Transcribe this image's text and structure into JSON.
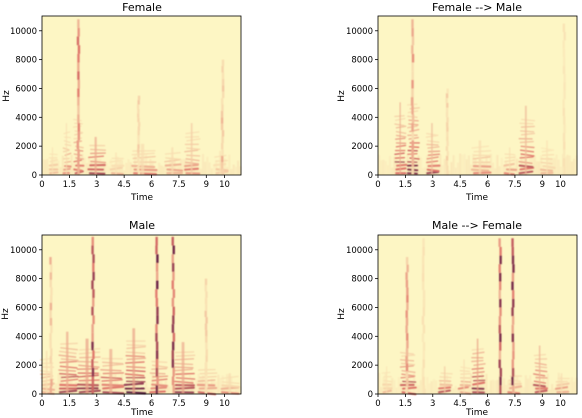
{
  "colors": {
    "background": "#fdf6c4",
    "light": "#f8ddb0",
    "mid": "#e0756a",
    "dark": "#4a0c3e",
    "axis": "#000000"
  },
  "chart_data": [
    {
      "type": "heatmap",
      "title": "Female",
      "xlabel": "Time",
      "ylabel": "Hz",
      "xlim": [
        0,
        10.9
      ],
      "ylim": [
        0,
        11025
      ],
      "xticks": [
        "0",
        "1.5",
        "3",
        "4.5",
        "6",
        "7.5",
        "9",
        "10"
      ],
      "yticks": [
        "0",
        "2000",
        "4000",
        "6000",
        "8000",
        "10000"
      ],
      "colormap": "magma_r",
      "segments": [
        {
          "t0": 0.4,
          "t1": 0.8,
          "f": 1600,
          "i": 0.5
        },
        {
          "t0": 1.2,
          "t1": 1.5,
          "f": 3000,
          "i": 0.6
        },
        {
          "t0": 1.8,
          "t1": 2.2,
          "f": 4000,
          "i": 0.7
        },
        {
          "t0": 2.6,
          "t1": 3.4,
          "f": 2200,
          "i": 0.9
        },
        {
          "t0": 3.8,
          "t1": 4.4,
          "f": 1300,
          "i": 0.5
        },
        {
          "t0": 5.0,
          "t1": 6.2,
          "f": 1800,
          "i": 0.6
        },
        {
          "t0": 6.8,
          "t1": 7.6,
          "f": 1600,
          "i": 0.6
        },
        {
          "t0": 7.9,
          "t1": 8.6,
          "f": 3000,
          "i": 0.7
        },
        {
          "t0": 9.5,
          "t1": 10.1,
          "f": 1400,
          "i": 0.5
        }
      ],
      "spikes": [
        {
          "t": 2.0,
          "f": 10800,
          "i": 0.7
        },
        {
          "t": 5.3,
          "f": 5500,
          "i": 0.4
        },
        {
          "t": 9.9,
          "f": 8000,
          "i": 0.5
        }
      ]
    },
    {
      "type": "heatmap",
      "title": "Female --> Male",
      "xlabel": "Time",
      "ylabel": "Hz",
      "xlim": [
        0,
        10.9
      ],
      "ylim": [
        0,
        11025
      ],
      "xticks": [
        "0",
        "1.5",
        "3",
        "4.5",
        "6",
        "7.5",
        "9",
        "10"
      ],
      "yticks": [
        "0",
        "2000",
        "4000",
        "6000",
        "8000",
        "10000"
      ],
      "colormap": "magma_r",
      "segments": [
        {
          "t0": 1.0,
          "t1": 1.5,
          "f": 4200,
          "i": 0.9
        },
        {
          "t0": 1.7,
          "t1": 2.2,
          "f": 5000,
          "i": 0.9
        },
        {
          "t0": 2.7,
          "t1": 3.3,
          "f": 3000,
          "i": 0.8
        },
        {
          "t0": 5.2,
          "t1": 6.1,
          "f": 2000,
          "i": 0.6
        },
        {
          "t0": 7.0,
          "t1": 7.5,
          "f": 1600,
          "i": 0.6
        },
        {
          "t0": 7.8,
          "t1": 8.5,
          "f": 4000,
          "i": 0.8
        },
        {
          "t0": 9.0,
          "t1": 9.6,
          "f": 2000,
          "i": 0.5
        }
      ],
      "spikes": [
        {
          "t": 1.9,
          "f": 10800,
          "i": 0.6
        },
        {
          "t": 3.8,
          "f": 6000,
          "i": 0.4
        },
        {
          "t": 10.2,
          "f": 10500,
          "i": 0.3
        }
      ]
    },
    {
      "type": "heatmap",
      "title": "Male",
      "xlabel": "Time",
      "ylabel": "Hz",
      "xlim": [
        0,
        10.9
      ],
      "ylim": [
        0,
        11025
      ],
      "xticks": [
        "0",
        "1.5",
        "3",
        "4.5",
        "6",
        "7.5",
        "9",
        "10"
      ],
      "yticks": [
        "0",
        "2000",
        "4000",
        "6000",
        "8000",
        "10000"
      ],
      "colormap": "magma_r",
      "segments": [
        {
          "t0": 0.0,
          "t1": 0.6,
          "f": 2500,
          "i": 0.6
        },
        {
          "t0": 1.0,
          "t1": 1.9,
          "f": 3600,
          "i": 0.9
        },
        {
          "t0": 2.0,
          "t1": 3.1,
          "f": 3200,
          "i": 0.95
        },
        {
          "t0": 3.3,
          "t1": 4.4,
          "f": 2600,
          "i": 0.9
        },
        {
          "t0": 4.6,
          "t1": 5.6,
          "f": 3800,
          "i": 0.95
        },
        {
          "t0": 6.0,
          "t1": 6.8,
          "f": 2400,
          "i": 0.8
        },
        {
          "t0": 7.3,
          "t1": 8.3,
          "f": 3000,
          "i": 0.9
        },
        {
          "t0": 8.6,
          "t1": 9.5,
          "f": 1800,
          "i": 0.7
        },
        {
          "t0": 9.9,
          "t1": 10.8,
          "f": 1200,
          "i": 0.6
        }
      ],
      "spikes": [
        {
          "t": 0.5,
          "f": 9500,
          "i": 0.5
        },
        {
          "t": 2.8,
          "f": 10900,
          "i": 0.9
        },
        {
          "t": 6.3,
          "f": 10900,
          "i": 0.95
        },
        {
          "t": 7.2,
          "f": 10900,
          "i": 0.95
        },
        {
          "t": 9.0,
          "f": 8000,
          "i": 0.4
        }
      ]
    },
    {
      "type": "heatmap",
      "title": "Male --> Female",
      "xlabel": "Time",
      "ylabel": "Hz",
      "xlim": [
        0,
        10.9
      ],
      "ylim": [
        0,
        11025
      ],
      "xticks": [
        "0",
        "1.5",
        "3",
        "4.5",
        "6",
        "7.5",
        "9",
        "10"
      ],
      "yticks": [
        "0",
        "2000",
        "4000",
        "6000",
        "8000",
        "10000"
      ],
      "colormap": "magma_r",
      "segments": [
        {
          "t0": 0.3,
          "t1": 0.7,
          "f": 1600,
          "i": 0.5
        },
        {
          "t0": 1.3,
          "t1": 2.0,
          "f": 3000,
          "i": 0.85
        },
        {
          "t0": 3.4,
          "t1": 4.0,
          "f": 1600,
          "i": 0.7
        },
        {
          "t0": 4.5,
          "t1": 5.0,
          "f": 2000,
          "i": 0.6
        },
        {
          "t0": 5.2,
          "t1": 5.8,
          "f": 3200,
          "i": 0.95
        },
        {
          "t0": 7.2,
          "t1": 7.8,
          "f": 1400,
          "i": 0.6
        },
        {
          "t0": 8.6,
          "t1": 9.2,
          "f": 2800,
          "i": 0.85
        },
        {
          "t0": 9.8,
          "t1": 10.4,
          "f": 1200,
          "i": 0.6
        }
      ],
      "spikes": [
        {
          "t": 1.6,
          "f": 9500,
          "i": 0.6
        },
        {
          "t": 6.7,
          "f": 10800,
          "i": 0.9
        },
        {
          "t": 7.4,
          "f": 10800,
          "i": 0.9
        },
        {
          "t": 2.5,
          "f": 10800,
          "i": 0.3
        }
      ]
    }
  ]
}
